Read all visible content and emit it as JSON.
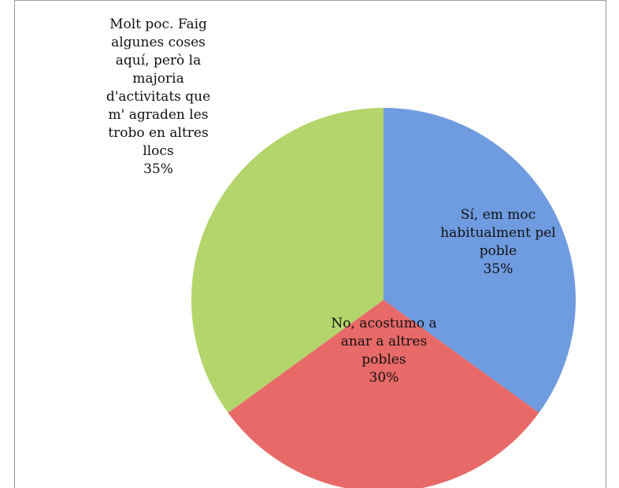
{
  "chart_data": {
    "type": "pie",
    "categories": [
      "Sí, em moc habitualment pel poble",
      "No, acostumo a anar a altres pobles",
      "Molt poc. Faig algunes coses aquí, però la majoria d'activitats que m' agraden les trobo en altres llocs"
    ],
    "values": [
      35,
      30,
      35
    ],
    "value_labels": [
      "35%",
      "30%",
      "35%"
    ],
    "colors": [
      "#6f9be0",
      "#e76a68",
      "#b3d56c"
    ]
  }
}
